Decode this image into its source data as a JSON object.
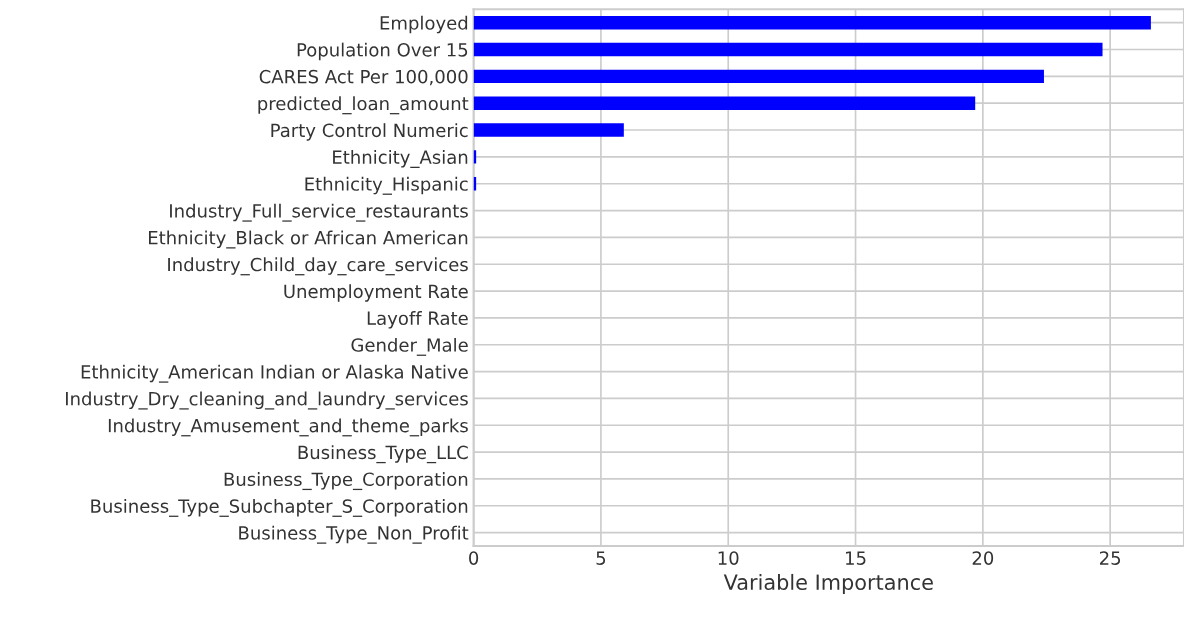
{
  "chart_data": {
    "type": "bar",
    "orientation": "horizontal",
    "xlabel": "Variable Importance",
    "categories": [
      "Employed",
      "Population Over 15",
      "CARES Act Per 100,000",
      "predicted_loan_amount",
      "Party Control Numeric",
      "Ethnicity_Asian",
      "Ethnicity_Hispanic",
      "Industry_Full_service_restaurants",
      "Ethnicity_Black or African American",
      "Industry_Child_day_care_services",
      "Unemployment Rate",
      "Layoff Rate",
      "Gender_Male",
      "Ethnicity_American Indian or Alaska Native",
      "Industry_Dry_cleaning_and_laundry_services",
      "Industry_Amusement_and_theme_parks",
      "Business_Type_LLC",
      "Business_Type_Corporation",
      "Business_Type_Subchapter_S_Corporation",
      "Business_Type_Non_Profit"
    ],
    "values": [
      26.6,
      24.7,
      22.4,
      19.7,
      5.9,
      0.1,
      0.1,
      0,
      0,
      0,
      0,
      0,
      0,
      0,
      0,
      0,
      0,
      0,
      0,
      0
    ],
    "color": "#0000ff",
    "xlim": [
      0,
      27.9
    ],
    "xticks": [
      0,
      5,
      10,
      15,
      20,
      25
    ],
    "grid": true
  }
}
